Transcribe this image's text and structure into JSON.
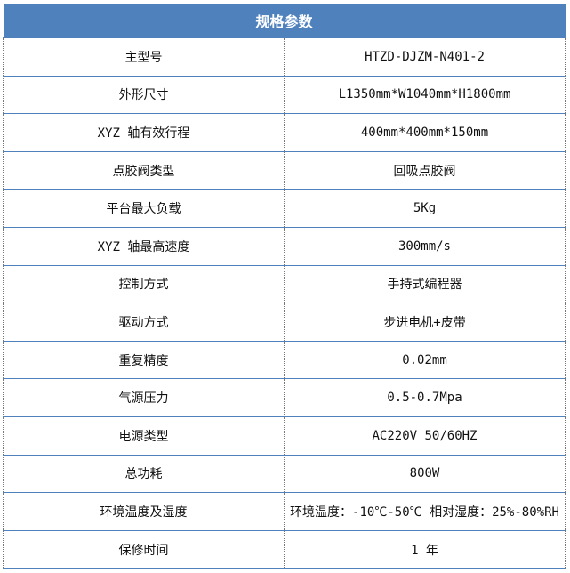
{
  "header": {
    "title": "规格参数"
  },
  "rows": [
    {
      "label": "主型号",
      "value": "HTZD-DJZM-N401-2"
    },
    {
      "label": "外形尺寸",
      "value": "L1350mm*W1040mm*H1800mm"
    },
    {
      "label": "XYZ 轴有效行程",
      "value": "400mm*400mm*150mm"
    },
    {
      "label": "点胶阀类型",
      "value": "回吸点胶阀"
    },
    {
      "label": "平台最大负载",
      "value": "5Kg"
    },
    {
      "label": "XYZ 轴最高速度",
      "value": "300mm/s"
    },
    {
      "label": "控制方式",
      "value": "手持式编程器"
    },
    {
      "label": "驱动方式",
      "value": "步进电机+皮带"
    },
    {
      "label": "重复精度",
      "value": "0.02mm"
    },
    {
      "label": "气源压力",
      "value": "0.5-0.7Mpa"
    },
    {
      "label": "电源类型",
      "value": "AC220V 50/60HZ"
    },
    {
      "label": "总功耗",
      "value": "800W"
    },
    {
      "label": "环境温度及湿度",
      "value": "环境温度：-10℃-50℃ 相对湿度：25%-80%RH"
    },
    {
      "label": "保修时间",
      "value": "1 年"
    }
  ],
  "colors": {
    "header_bg": "#4f81bd",
    "row_border": "#4f81bd"
  }
}
